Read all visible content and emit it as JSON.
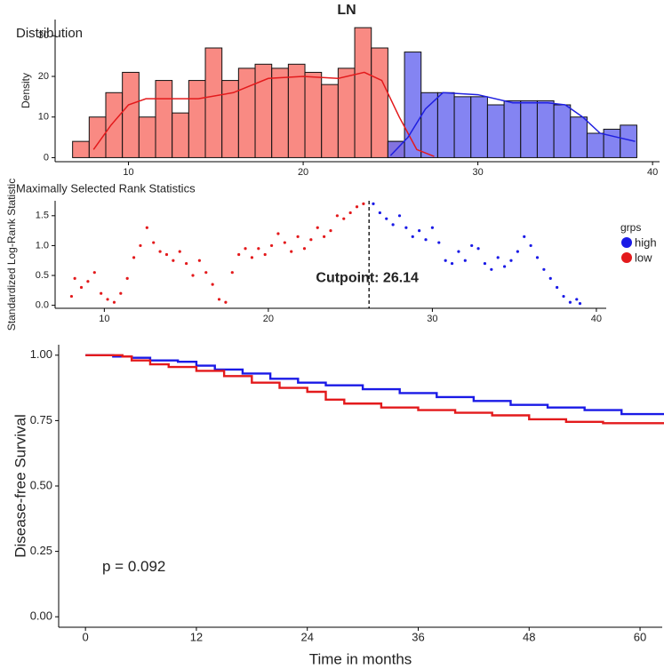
{
  "title": "LN",
  "chart_data": [
    {
      "type": "histogram",
      "title": "Distribution",
      "ylabel": "Density",
      "bins": [
        6.8,
        7.75,
        8.7,
        9.65,
        10.6,
        11.55,
        12.5,
        13.45,
        14.4,
        15.35,
        16.3,
        17.25,
        18.2,
        19.15,
        20.1,
        21.05,
        22.0,
        22.95,
        23.9,
        24.85,
        25.8,
        26.75,
        27.7,
        28.65,
        29.6,
        30.55,
        31.5,
        32.45,
        33.4,
        34.35,
        35.3,
        36.25,
        37.2,
        38.15,
        39.1
      ],
      "series": [
        {
          "name": "low",
          "color": "#f8766d",
          "values": [
            4,
            10,
            16,
            21,
            10,
            19,
            11,
            19,
            27,
            19,
            22,
            23,
            22,
            23,
            21,
            18,
            22,
            32,
            27,
            4,
            0,
            0,
            0,
            0,
            0,
            0,
            0,
            0,
            0,
            0,
            0,
            0,
            0,
            0
          ]
        },
        {
          "name": "high",
          "color": "#6f6ff0",
          "values": [
            0,
            0,
            0,
            0,
            0,
            0,
            0,
            0,
            0,
            0,
            0,
            0,
            0,
            0,
            0,
            0,
            0,
            0,
            0,
            4,
            26,
            16,
            16,
            15,
            15,
            13,
            14,
            14,
            14,
            13,
            10,
            6,
            7,
            8
          ]
        }
      ],
      "density": [
        {
          "color": "#e31a1c",
          "x": [
            8,
            9,
            10,
            11,
            12,
            14,
            16,
            18,
            20,
            22,
            23.5,
            24.5,
            25.5,
            26.5,
            27.5
          ],
          "values": [
            2,
            8,
            13,
            14.5,
            14.5,
            14.5,
            16,
            19.5,
            20,
            19.5,
            21,
            19,
            10,
            2,
            0.3
          ]
        },
        {
          "color": "#1f1fe0",
          "x": [
            25,
            26,
            27,
            28,
            30,
            32,
            34,
            35,
            36,
            37,
            38,
            39
          ],
          "values": [
            0.5,
            5,
            12,
            16,
            15.5,
            13.5,
            13.5,
            13,
            10,
            6,
            5,
            4
          ]
        }
      ],
      "xlim": [
        5.8,
        40.4
      ],
      "xticks": [
        10,
        20,
        30,
        40
      ],
      "ylim": [
        -1,
        34
      ],
      "yticks": [
        0,
        10,
        20,
        30
      ]
    },
    {
      "type": "scatter",
      "title": "Maximally Selected Rank Statistics",
      "ylabel": "Standardized Log-Rank Statistic",
      "cutpoint": 26.14,
      "annotation": "Cutpoint: 26.14",
      "annotation_color": "#f0b429",
      "legend": "right",
      "legend_title": "grps",
      "series": [
        {
          "name": "high",
          "color": "#1a1ae6",
          "x": [
            26.4,
            26.8,
            27.2,
            27.6,
            28,
            28.4,
            28.8,
            29.2,
            29.6,
            30,
            30.4,
            30.8,
            31.2,
            31.6,
            32,
            32.4,
            32.8,
            33.2,
            33.6,
            34,
            34.4,
            34.8,
            35.2,
            35.6,
            36,
            36.4,
            36.8,
            37.2,
            37.6,
            38,
            38.4,
            38.8,
            39
          ],
          "values": [
            1.7,
            1.55,
            1.45,
            1.35,
            1.5,
            1.3,
            1.15,
            1.25,
            1.1,
            1.3,
            1.05,
            0.75,
            0.7,
            0.9,
            0.75,
            1.0,
            0.95,
            0.7,
            0.6,
            0.8,
            0.65,
            0.75,
            0.9,
            1.15,
            1.0,
            0.8,
            0.6,
            0.45,
            0.3,
            0.15,
            0.05,
            0.1,
            0.03
          ]
        },
        {
          "name": "low",
          "color": "#e31a1c",
          "x": [
            8,
            8.2,
            8.6,
            9,
            9.4,
            9.8,
            10.2,
            10.6,
            11,
            11.4,
            11.8,
            12.2,
            12.6,
            13,
            13.4,
            13.8,
            14.2,
            14.6,
            15,
            15.4,
            15.8,
            16.2,
            16.6,
            17,
            17.4,
            17.8,
            18.2,
            18.6,
            19,
            19.4,
            19.8,
            20.2,
            20.6,
            21,
            21.4,
            21.8,
            22.2,
            22.6,
            23,
            23.4,
            23.8,
            24.2,
            24.6,
            25,
            25.4,
            25.8
          ],
          "values": [
            0.15,
            0.45,
            0.3,
            0.4,
            0.55,
            0.2,
            0.1,
            0.05,
            0.2,
            0.45,
            0.8,
            1.0,
            1.3,
            1.05,
            0.9,
            0.85,
            0.75,
            0.9,
            0.7,
            0.5,
            0.75,
            0.55,
            0.35,
            0.1,
            0.05,
            0.55,
            0.85,
            0.95,
            0.8,
            0.95,
            0.85,
            1.0,
            1.2,
            1.05,
            0.9,
            1.15,
            0.95,
            1.1,
            1.3,
            1.15,
            1.25,
            1.5,
            1.45,
            1.55,
            1.65,
            1.7
          ]
        }
      ],
      "xlim": [
        7,
        40.6
      ],
      "xticks": [
        10,
        20,
        30,
        40
      ],
      "ylim": [
        -0.05,
        1.75
      ],
      "yticks": [
        {
          "value": 0,
          "label": "0.0"
        },
        {
          "value": 0.5,
          "label": "0.5"
        },
        {
          "value": 1,
          "label": "1.0"
        },
        {
          "value": 1.5,
          "label": "1.5"
        }
      ]
    },
    {
      "type": "step",
      "xlabel": "Time in months",
      "ylabel": "Disease-free Survival",
      "annotation": "p = 0.092",
      "annotation_color": "#f0b429",
      "series": [
        {
          "color": "#1a1ae6",
          "x": [
            0,
            3,
            5,
            7,
            10,
            12,
            14,
            17,
            20,
            23,
            26,
            30,
            34,
            38,
            42,
            46,
            50,
            54,
            58,
            63
          ],
          "values": [
            1,
            0.995,
            0.99,
            0.98,
            0.975,
            0.96,
            0.945,
            0.93,
            0.91,
            0.895,
            0.885,
            0.87,
            0.855,
            0.84,
            0.825,
            0.81,
            0.8,
            0.79,
            0.775,
            0.76
          ]
        },
        {
          "color": "#e31a1c",
          "x": [
            0,
            4,
            5,
            7,
            9,
            12,
            15,
            18,
            21,
            24,
            26,
            28,
            32,
            36,
            40,
            44,
            48,
            52,
            56,
            63
          ],
          "values": [
            1,
            0.995,
            0.98,
            0.965,
            0.955,
            0.94,
            0.92,
            0.895,
            0.875,
            0.86,
            0.83,
            0.815,
            0.8,
            0.79,
            0.78,
            0.77,
            0.755,
            0.745,
            0.74,
            0.725
          ]
        }
      ],
      "xlim": [
        -2.9,
        62.4
      ],
      "xticks": [
        0,
        12,
        24,
        36,
        48,
        60
      ],
      "ylim": [
        -0.04,
        1.04
      ],
      "yticks": [
        {
          "value": 0,
          "label": "0.00"
        },
        {
          "value": 0.25,
          "label": "0.25"
        },
        {
          "value": 0.5,
          "label": "0.50"
        },
        {
          "value": 0.75,
          "label": "0.75"
        },
        {
          "value": 1,
          "label": "1.00"
        }
      ]
    }
  ]
}
